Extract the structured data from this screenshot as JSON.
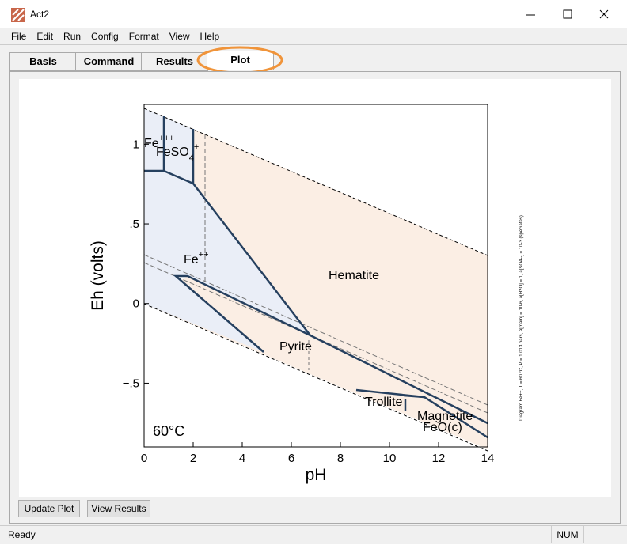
{
  "window": {
    "title": "Act2"
  },
  "menu": [
    "File",
    "Edit",
    "Run",
    "Config",
    "Format",
    "View",
    "Help"
  ],
  "tabs": [
    "Basis",
    "Command",
    "Results",
    "Plot"
  ],
  "plot": {
    "xlabel": "pH",
    "ylabel": "Eh (volts)",
    "temperature": "60°C",
    "xlim": [
      0,
      14
    ],
    "ylim": [
      -0.9,
      1.25
    ],
    "xticks": [
      0,
      2,
      4,
      6,
      8,
      10,
      12,
      14
    ],
    "yticks": [
      {
        "value": -0.5,
        "label": "−.5"
      },
      0,
      {
        "value": 0.5,
        "label": ".5"
      },
      1
    ],
    "regions": [
      {
        "base": "Fe",
        "sup": "+++"
      },
      {
        "base": "FeSO",
        "sub": "4",
        "sup": "+"
      },
      {
        "base": "Fe",
        "sup": "++"
      },
      {
        "base": "Hematite"
      },
      {
        "base": "Pyrite"
      },
      {
        "base": "Trollite"
      },
      {
        "base": "Magnetite"
      },
      {
        "base": "FeO(c)"
      }
    ],
    "note": "Diagram Fe++, T = 60 °C, P = 1.013 bars, a[main] = 10-6, a[H2O] = 1, a[SO4--] = 10-3 (speciates)"
  },
  "buttons": [
    "Update Plot",
    "View Results"
  ],
  "status": {
    "left": "Ready",
    "right": "NUM"
  }
}
